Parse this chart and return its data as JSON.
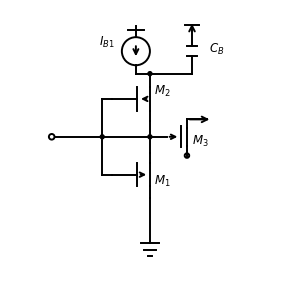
{
  "fig_width": 2.83,
  "fig_height": 2.82,
  "dpi": 100,
  "bg_color": "#ffffff",
  "lc": "#000000",
  "lw": 1.4
}
